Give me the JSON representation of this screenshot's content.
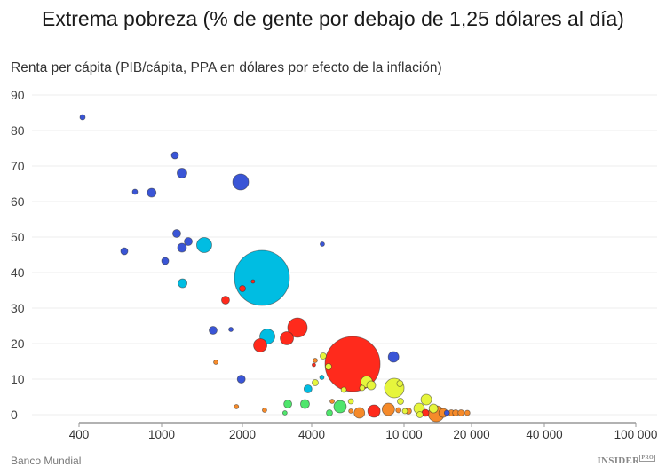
{
  "chart_data": {
    "type": "scatter",
    "title": "Extrema pobreza (% de gente por debajo de 1,25 dólares al día)",
    "ylabel": "Renta per cápita (PIB/cápita, PPA en dólares por efecto de la inflación)",
    "x_scale": "log",
    "x_ticks": [
      400,
      1000,
      2000,
      4000,
      10000,
      20000,
      40000,
      100000
    ],
    "x_tick_labels": [
      "400",
      "1000",
      "2000",
      "4000",
      "10 000",
      "20 000",
      "40 000",
      "100 000"
    ],
    "y_ticks": [
      0,
      10,
      20,
      30,
      40,
      50,
      60,
      70,
      80,
      90
    ],
    "ylim": [
      0,
      90
    ],
    "grid": true,
    "colors": {
      "blue": "#3a55d6",
      "cyan": "#00bde2",
      "red": "#ff2a1c",
      "orange": "#f58a2a",
      "yellow": "#e6f53c",
      "green": "#4fe56c"
    },
    "points": [
      {
        "x": 416,
        "y": 83.75,
        "size": 3,
        "color": "blue"
      },
      {
        "x": 1121,
        "y": 73,
        "size": 4,
        "color": "blue"
      },
      {
        "x": 1191,
        "y": 68,
        "size": 5.5,
        "color": "blue"
      },
      {
        "x": 1970,
        "y": 65.5,
        "size": 9,
        "color": "blue"
      },
      {
        "x": 744,
        "y": 62.75,
        "size": 3,
        "color": "blue"
      },
      {
        "x": 895,
        "y": 62.5,
        "size": 5,
        "color": "blue"
      },
      {
        "x": 1138,
        "y": 51,
        "size": 4.5,
        "color": "blue"
      },
      {
        "x": 1257,
        "y": 48.75,
        "size": 4.5,
        "color": "blue"
      },
      {
        "x": 1441,
        "y": 47.75,
        "size": 8.5,
        "color": "cyan"
      },
      {
        "x": 1191,
        "y": 47,
        "size": 5,
        "color": "blue"
      },
      {
        "x": 661,
        "y": 46,
        "size": 4,
        "color": "blue"
      },
      {
        "x": 1031,
        "y": 43.25,
        "size": 4,
        "color": "blue"
      },
      {
        "x": 1197,
        "y": 37,
        "size": 5,
        "color": "cyan"
      },
      {
        "x": 2432,
        "y": 38.5,
        "size": 31,
        "color": "cyan"
      },
      {
        "x": 4444,
        "y": 48,
        "size": 2.5,
        "color": "blue"
      },
      {
        "x": 2222,
        "y": 37.5,
        "size": 2,
        "color": "red"
      },
      {
        "x": 2000,
        "y": 35.5,
        "size": 3.5,
        "color": "red"
      },
      {
        "x": 1730,
        "y": 32.25,
        "size": 4.5,
        "color": "red"
      },
      {
        "x": 1555,
        "y": 23.75,
        "size": 4.5,
        "color": "blue"
      },
      {
        "x": 1812,
        "y": 24,
        "size": 2.5,
        "color": "blue"
      },
      {
        "x": 2566,
        "y": 22,
        "size": 8.5,
        "color": "cyan"
      },
      {
        "x": 3469,
        "y": 24.5,
        "size": 11,
        "color": "red"
      },
      {
        "x": 3120,
        "y": 21.5,
        "size": 7.5,
        "color": "red"
      },
      {
        "x": 2390,
        "y": 19.5,
        "size": 7.5,
        "color": "red"
      },
      {
        "x": 1592,
        "y": 14.75,
        "size": 2.5,
        "color": "orange"
      },
      {
        "x": 1980,
        "y": 10,
        "size": 4.5,
        "color": "blue"
      },
      {
        "x": 6000,
        "y": 14.25,
        "size": 31,
        "color": "red"
      },
      {
        "x": 9010,
        "y": 16.25,
        "size": 6,
        "color": "blue"
      },
      {
        "x": 4483,
        "y": 16.5,
        "size": 3.5,
        "color": "yellow"
      },
      {
        "x": 4142,
        "y": 15.25,
        "size": 2.5,
        "color": "orange"
      },
      {
        "x": 4087,
        "y": 14,
        "size": 2,
        "color": "red"
      },
      {
        "x": 4727,
        "y": 13.5,
        "size": 3.5,
        "color": "yellow"
      },
      {
        "x": 4425,
        "y": 10.5,
        "size": 2.5,
        "color": "cyan"
      },
      {
        "x": 4142,
        "y": 9,
        "size": 3.5,
        "color": "yellow"
      },
      {
        "x": 3854,
        "y": 7.25,
        "size": 4.5,
        "color": "cyan"
      },
      {
        "x": 6900,
        "y": 9.25,
        "size": 6.5,
        "color": "yellow"
      },
      {
        "x": 7220,
        "y": 8.25,
        "size": 5,
        "color": "yellow"
      },
      {
        "x": 6600,
        "y": 7.5,
        "size": 3,
        "color": "yellow"
      },
      {
        "x": 5500,
        "y": 7,
        "size": 3,
        "color": "yellow"
      },
      {
        "x": 9080,
        "y": 7.5,
        "size": 11,
        "color": "yellow"
      },
      {
        "x": 9600,
        "y": 8.75,
        "size": 3.5,
        "color": "yellow"
      },
      {
        "x": 1900,
        "y": 2.25,
        "size": 2.5,
        "color": "orange"
      },
      {
        "x": 2496,
        "y": 1.25,
        "size": 2.5,
        "color": "orange"
      },
      {
        "x": 3150,
        "y": 3,
        "size": 4.5,
        "color": "green"
      },
      {
        "x": 3060,
        "y": 0.5,
        "size": 2.5,
        "color": "green"
      },
      {
        "x": 3740,
        "y": 3,
        "size": 5,
        "color": "green"
      },
      {
        "x": 4770,
        "y": 0.5,
        "size": 3.5,
        "color": "green"
      },
      {
        "x": 5300,
        "y": 2.25,
        "size": 7,
        "color": "green"
      },
      {
        "x": 4900,
        "y": 3.75,
        "size": 2.5,
        "color": "orange"
      },
      {
        "x": 5900,
        "y": 3.75,
        "size": 3,
        "color": "yellow"
      },
      {
        "x": 5900,
        "y": 1,
        "size": 2.5,
        "color": "orange"
      },
      {
        "x": 6420,
        "y": 0.5,
        "size": 6,
        "color": "orange"
      },
      {
        "x": 7420,
        "y": 1,
        "size": 7,
        "color": "red"
      },
      {
        "x": 8560,
        "y": 1.5,
        "size": 7,
        "color": "orange"
      },
      {
        "x": 9650,
        "y": 3.75,
        "size": 3.5,
        "color": "yellow"
      },
      {
        "x": 9460,
        "y": 1.25,
        "size": 3,
        "color": "orange"
      },
      {
        "x": 10090,
        "y": 1,
        "size": 3,
        "color": "yellow"
      },
      {
        "x": 10460,
        "y": 1,
        "size": 3.5,
        "color": "orange"
      },
      {
        "x": 11680,
        "y": 1.75,
        "size": 6,
        "color": "yellow"
      },
      {
        "x": 11760,
        "y": 0,
        "size": 3.5,
        "color": "yellow"
      },
      {
        "x": 12570,
        "y": 4.25,
        "size": 6,
        "color": "yellow"
      },
      {
        "x": 13530,
        "y": 1.75,
        "size": 5,
        "color": "yellow"
      },
      {
        "x": 12460,
        "y": 0.5,
        "size": 4,
        "color": "red"
      },
      {
        "x": 13920,
        "y": 0.25,
        "size": 9,
        "color": "orange"
      },
      {
        "x": 14960,
        "y": 0.5,
        "size": 5,
        "color": "orange"
      },
      {
        "x": 15530,
        "y": 0.5,
        "size": 3,
        "color": "blue"
      },
      {
        "x": 16260,
        "y": 0.5,
        "size": 3.5,
        "color": "orange"
      },
      {
        "x": 17000,
        "y": 0.5,
        "size": 3.5,
        "color": "orange"
      },
      {
        "x": 17960,
        "y": 0.5,
        "size": 3.5,
        "color": "orange"
      },
      {
        "x": 19160,
        "y": 0.5,
        "size": 3,
        "color": "orange"
      }
    ]
  },
  "footer": {
    "source": "Banco Mundial",
    "brand": "INSIDER",
    "brand_badge": "PRO"
  }
}
